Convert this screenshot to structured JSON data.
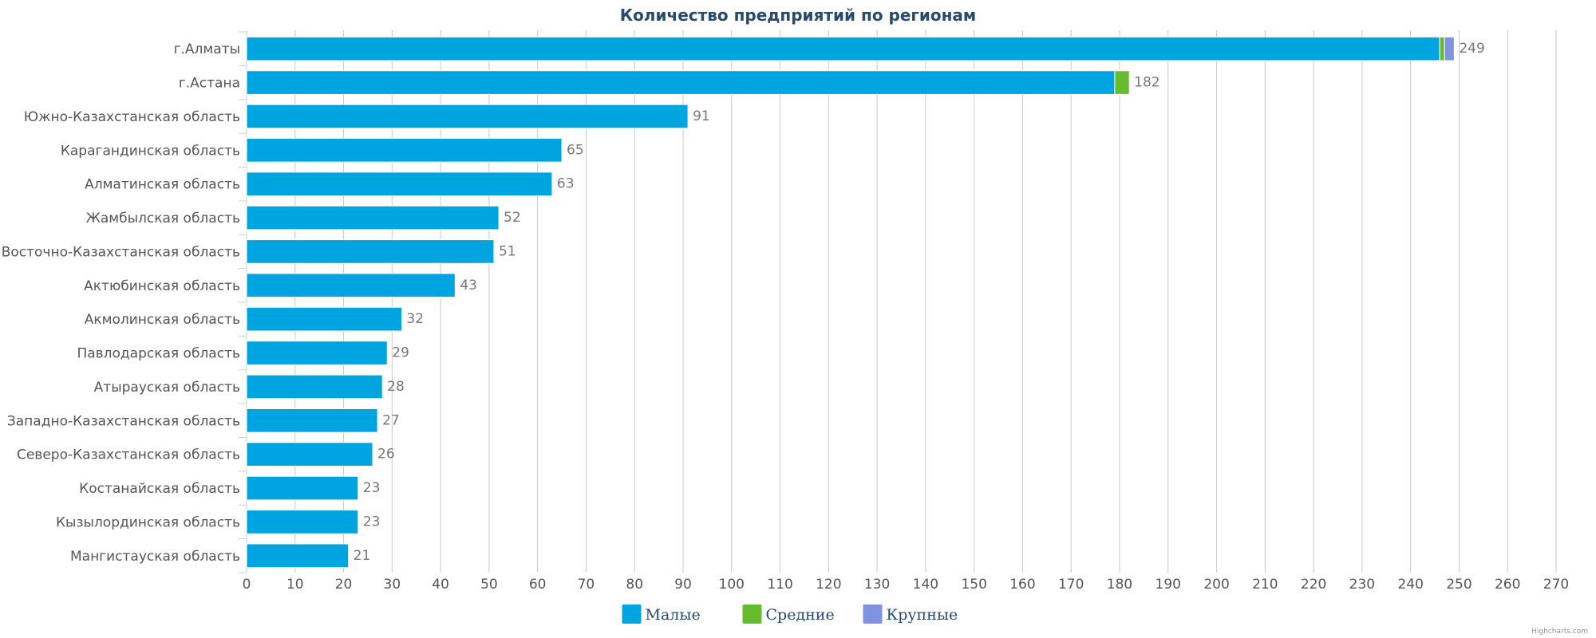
{
  "chart_data": {
    "type": "bar",
    "orientation": "horizontal",
    "stacked": true,
    "title": "Количество предприятий по регионам",
    "categories": [
      "г.Алматы",
      "г.Астана",
      "Южно-Казахстанская область",
      "Карагандинская область",
      "Алматинская область",
      "Жамбылская область",
      "Восточно-Казахстанская область",
      "Актюбинская область",
      "Акмолинская область",
      "Павлодарская область",
      "Атырауская область",
      "Западно-Казахстанская область",
      "Северо-Казахстанская область",
      "Костанайская область",
      "Кызылординская область",
      "Мангистауская область"
    ],
    "series": [
      {
        "name": "Малые",
        "color": "#00a5e0",
        "values": [
          246,
          179,
          91,
          65,
          63,
          52,
          51,
          43,
          32,
          29,
          28,
          27,
          26,
          23,
          23,
          21
        ]
      },
      {
        "name": "Средние",
        "color": "#66bb2f",
        "values": [
          1,
          3,
          0,
          0,
          0,
          0,
          0,
          0,
          0,
          0,
          0,
          0,
          0,
          0,
          0,
          0
        ]
      },
      {
        "name": "Крупные",
        "color": "#7f93e0",
        "values": [
          2,
          0,
          0,
          0,
          0,
          0,
          0,
          0,
          0,
          0,
          0,
          0,
          0,
          0,
          0,
          0
        ]
      }
    ],
    "totals": [
      249,
      182,
      91,
      65,
      63,
      52,
      51,
      43,
      32,
      29,
      28,
      27,
      26,
      23,
      23,
      21
    ],
    "xlim": [
      0,
      270
    ],
    "xticks": [
      0,
      10,
      20,
      30,
      40,
      50,
      60,
      70,
      80,
      90,
      100,
      110,
      120,
      130,
      140,
      150,
      160,
      170,
      180,
      190,
      200,
      210,
      220,
      230,
      240,
      250,
      260,
      270
    ],
    "grid": true,
    "legend_position": "bottom-center"
  },
  "credits": "Highcharts.com"
}
